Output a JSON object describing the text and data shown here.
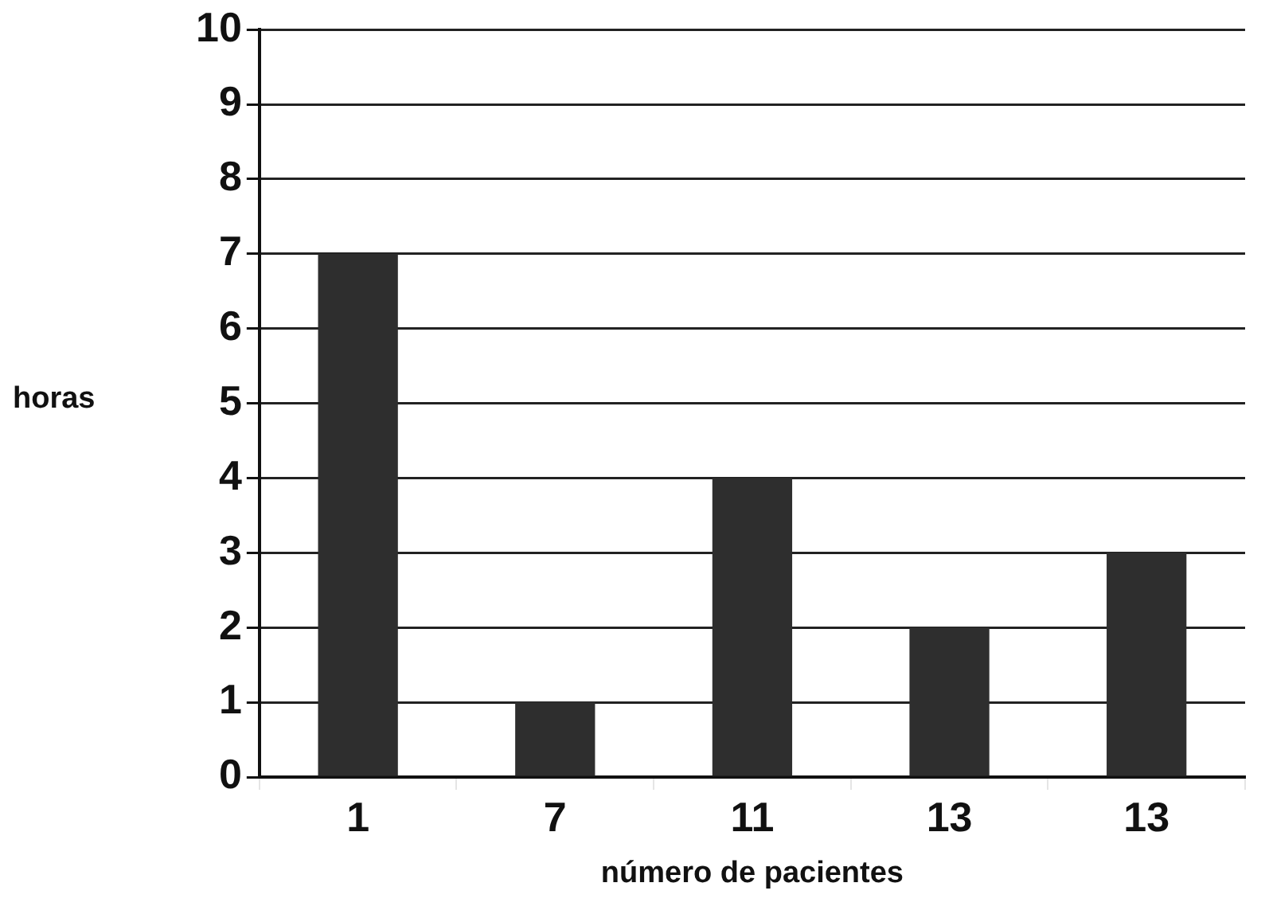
{
  "chart_data": {
    "type": "bar",
    "xlabel": "número de pacientes",
    "ylabel": "horas",
    "categories": [
      "1",
      "7",
      "11",
      "13",
      "13"
    ],
    "values": [
      7,
      1,
      4,
      2,
      3
    ],
    "color": "#2e2e2e",
    "ylim": [
      0,
      10
    ],
    "yticks": [
      0,
      1,
      2,
      3,
      4,
      5,
      6,
      7,
      8,
      9,
      10
    ],
    "grid": true
  }
}
